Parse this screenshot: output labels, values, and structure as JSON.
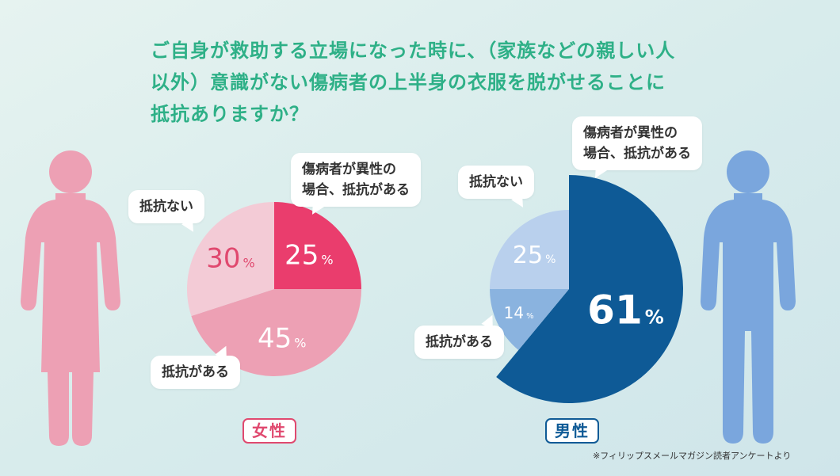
{
  "title": {
    "line1": "ご自身が救助する立場になった時に、（家族などの親しい人",
    "line2": "以外）意識がない傷病者の上半身の衣服を脱がせることに",
    "line3": "抵抗ありますか？"
  },
  "chart_data": [
    {
      "type": "pie",
      "title": "女性",
      "slices": [
        {
          "label": "傷病者が異性の場合、抵抗がある",
          "value": 25,
          "color": "#ea3d6d"
        },
        {
          "label": "抵抗がある",
          "value": 45,
          "color": "#eda0b4"
        },
        {
          "label": "抵抗ない",
          "value": 30,
          "color": "#f3cbd6"
        }
      ]
    },
    {
      "type": "pie",
      "title": "男性",
      "slices": [
        {
          "label": "傷病者が異性の場合、抵抗がある",
          "value": 61,
          "color": "#0e5a96"
        },
        {
          "label": "抵抗がある",
          "value": 14,
          "color": "#8ab3df"
        },
        {
          "label": "抵抗ない",
          "value": 25,
          "color": "#b9d0ed"
        }
      ]
    }
  ],
  "percent_unit": "%",
  "female": {
    "label": "女性",
    "bubble_opposite_line1": "傷病者が異性の",
    "bubble_opposite_line2": "場合、抵抗がある",
    "bubble_no": "抵抗ない",
    "bubble_yes": "抵抗がある"
  },
  "male": {
    "label": "男性",
    "bubble_opposite_line1": "傷病者が異性の",
    "bubble_opposite_line2": "場合、抵抗がある",
    "bubble_no": "抵抗ない",
    "bubble_yes": "抵抗がある"
  },
  "colors": {
    "title": "#2eb087",
    "female_figure": "#eda0b4",
    "male_figure": "#7aa6dd",
    "female_label": "#e0496f",
    "male_label": "#0e5a96"
  },
  "footnote": "※フィリップスメールマガジン読者アンケートより"
}
